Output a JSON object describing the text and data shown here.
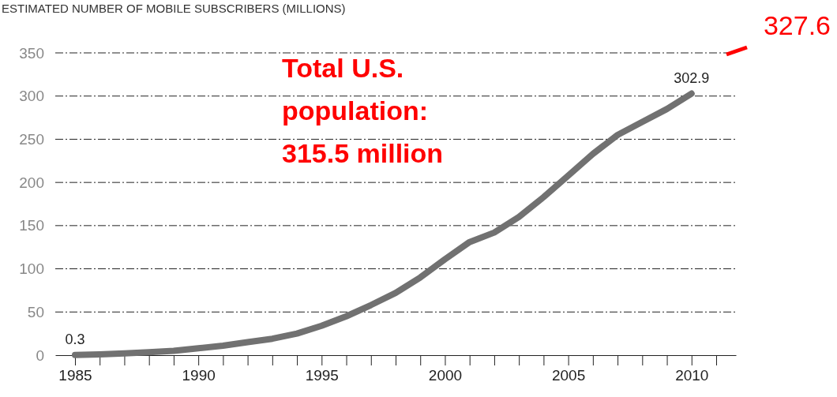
{
  "chart_data": {
    "type": "line",
    "title": "ESTIMATED NUMBER OF MOBILE SUBSCRIBERS (MILLIONS)",
    "x": [
      1985,
      1986,
      1987,
      1988,
      1989,
      1990,
      1991,
      1992,
      1993,
      1994,
      1995,
      1996,
      1997,
      1998,
      1999,
      2000,
      2001,
      2002,
      2003,
      2004,
      2005,
      2006,
      2007,
      2008,
      2009,
      2010
    ],
    "series": [
      {
        "color": "#717171",
        "values": [
          0.3,
          1,
          2,
          3.5,
          5,
          8,
          11,
          15,
          19,
          25,
          34,
          45,
          58,
          72,
          90,
          111,
          131,
          142,
          160,
          183,
          208,
          233,
          255,
          270,
          285,
          302.9
        ],
        "value_labels": [
          "0.3",
          null,
          null,
          null,
          null,
          null,
          null,
          null,
          null,
          null,
          null,
          null,
          null,
          null,
          null,
          null,
          null,
          null,
          null,
          null,
          null,
          null,
          null,
          null,
          null,
          "302.9"
        ]
      }
    ],
    "xlim": [
      1984.2,
      2011.8
    ],
    "xticks": [
      1985,
      {
        "value": 1986,
        "label": null
      },
      {
        "value": 1987,
        "label": null
      },
      {
        "value": 1988,
        "label": null
      },
      {
        "value": 1989,
        "label": null
      },
      1990,
      {
        "value": 1991,
        "label": null
      },
      {
        "value": 1992,
        "label": null
      },
      {
        "value": 1993,
        "label": null
      },
      {
        "value": 1994,
        "label": null
      },
      1995,
      {
        "value": 1996,
        "label": null
      },
      {
        "value": 1997,
        "label": null
      },
      {
        "value": 1998,
        "label": null
      },
      {
        "value": 1999,
        "label": null
      },
      2000,
      {
        "value": 2001,
        "label": null
      },
      {
        "value": 2002,
        "label": null
      },
      {
        "value": 2003,
        "label": null
      },
      {
        "value": 2004,
        "label": null
      },
      2005,
      {
        "value": 2006,
        "label": null
      },
      {
        "value": 2007,
        "label": null
      },
      {
        "value": 2008,
        "label": null
      },
      {
        "value": 2009,
        "label": null
      },
      2010,
      {
        "value": 2011,
        "label": null
      }
    ],
    "ylim": [
      0,
      350
    ],
    "yticks": [
      0,
      50,
      100,
      150,
      200,
      250,
      300,
      350
    ],
    "grid": "y",
    "marker": "none",
    "line_style": "solid",
    "annotations": [
      "Total U.S. population: 315.5 million",
      "327.6"
    ]
  }
}
